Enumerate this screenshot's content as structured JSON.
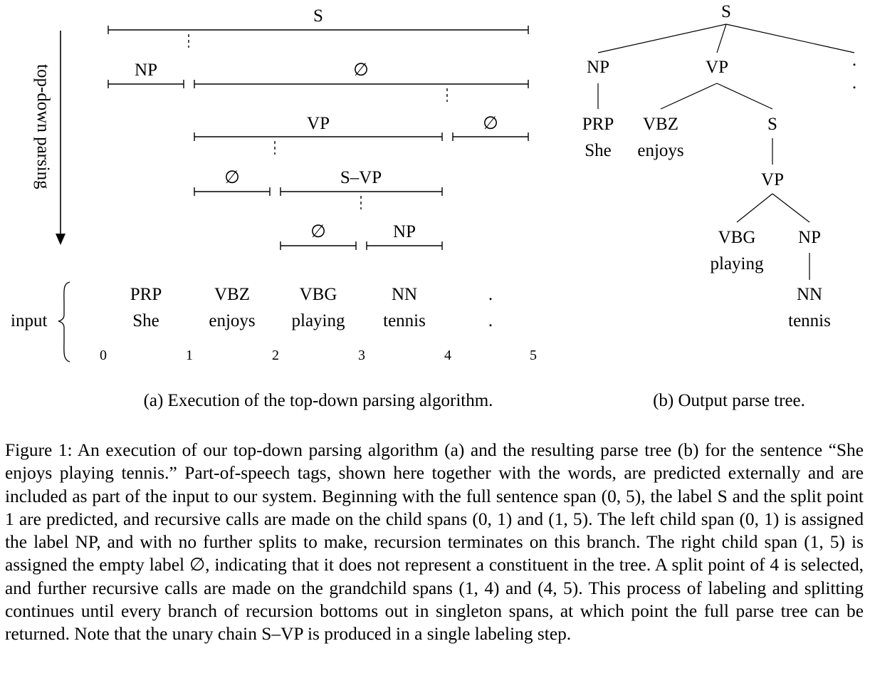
{
  "figure": {
    "axis_label": "top-down parsing",
    "input_label": "input",
    "span_labels": [
      "S",
      "NP",
      "∅",
      "VP",
      "∅",
      "∅",
      "S–VP",
      "∅",
      "NP"
    ],
    "tokens": [
      {
        "tag": "PRP",
        "word": "She"
      },
      {
        "tag": "VBZ",
        "word": "enjoys"
      },
      {
        "tag": "VBG",
        "word": "playing"
      },
      {
        "tag": "NN",
        "word": "tennis"
      },
      {
        "tag": ".",
        "word": "."
      }
    ],
    "indices": [
      "0",
      "1",
      "2",
      "3",
      "4",
      "5"
    ],
    "tree": {
      "root": "S",
      "np": "NP",
      "np_tag": "PRP",
      "np_word": "She",
      "vp": "VP",
      "vbz": "VBZ",
      "vbz_word": "enjoys",
      "s": "S",
      "vp2": "VP",
      "vbg": "VBG",
      "vbg_word": "playing",
      "np2": "NP",
      "nn": "NN",
      "nn_word": "tennis",
      "dot_tag": ".",
      "dot_word": "."
    },
    "subcaption_a": "(a) Execution of the top-down parsing algorithm.",
    "subcaption_b": "(b) Output parse tree."
  },
  "caption": {
    "p1": "Figure 1: An execution of our top-down parsing algorithm (a) and the resulting parse tree (b) for the sentence “She enjoys playing tennis.” Part-of-speech tags, shown here together with the words, are predicted externally and are included as part of the input to our system. Beginning with the full sentence span ",
    "m1": "(0, 5)",
    "p2": ", the label S and the split point 1 are predicted, and recursive calls are made on the child spans ",
    "m2": "(0, 1)",
    "p3": " and ",
    "m3": "(1, 5)",
    "p4": ". The left child span ",
    "m4": "(0, 1)",
    "p5": " is assigned the label NP, and with no further splits to make, recursion terminates on this branch. The right child span ",
    "m5": "(1, 5)",
    "p6": " is assigned the empty label ∅, indicating that it does not represent a constituent in the tree. A split point of 4 is selected, and further recursive calls are made on the grandchild spans ",
    "m6": "(1, 4)",
    "p7": " and ",
    "m7": "(4, 5)",
    "p8": ". This process of labeling and splitting continues until every branch of recursion bottoms out in singleton spans, at which point the full parse tree can be returned. Note that the unary chain S–VP is produced in a single labeling step."
  }
}
